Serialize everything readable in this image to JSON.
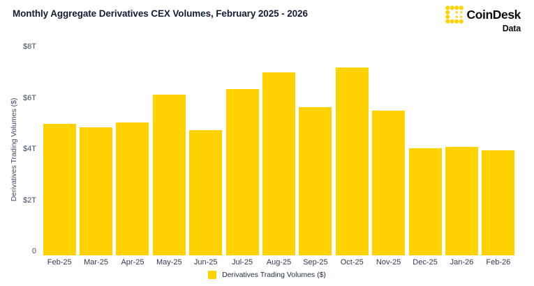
{
  "header": {
    "title": "Monthly Aggregate Derivatives CEX Volumes, February 2025 - 2026"
  },
  "logo": {
    "name": "CoinDesk",
    "sub": "Data",
    "color": "#FFD200"
  },
  "chart_data": {
    "type": "bar",
    "title": "Monthly Aggregate Derivatives CEX Volumes, February 2025 - 2026",
    "categories": [
      "Feb-25",
      "Mar-25",
      "Apr-25",
      "May-25",
      "Jun-25",
      "Jul-25",
      "Aug-25",
      "Sep-25",
      "Oct-25",
      "Nov-25",
      "Dec-25",
      "Jan-26",
      "Feb-26"
    ],
    "values": [
      5.15,
      5.0,
      5.2,
      6.3,
      4.9,
      6.5,
      7.15,
      5.8,
      7.35,
      5.65,
      4.2,
      4.25,
      4.1
    ],
    "values_unit": "trillion USD",
    "xlabel": "",
    "ylabel": "Derivatives Trading Volumes ($)",
    "ylim": [
      0,
      8
    ],
    "yticks": [
      {
        "value": 0,
        "label": "0"
      },
      {
        "value": 2,
        "label": "$2T"
      },
      {
        "value": 4,
        "label": "$4T"
      },
      {
        "value": 6,
        "label": "$6T"
      },
      {
        "value": 8,
        "label": "$8T"
      }
    ],
    "grid": false,
    "bar_color": "#FFD200",
    "legend_position": "bottom",
    "legend": [
      {
        "label": "Derivatives Trading Volumes ($)",
        "color": "#FFD200"
      }
    ]
  }
}
